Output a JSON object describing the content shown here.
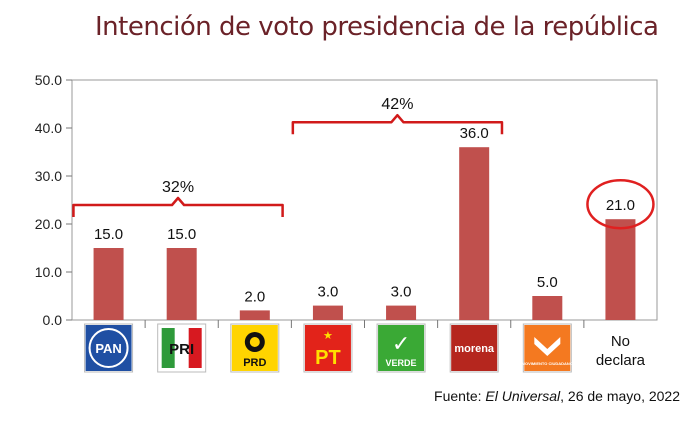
{
  "title": "Intención de voto presidencia de la república",
  "chart_data": {
    "type": "bar",
    "categories": [
      "PAN",
      "PRI",
      "PRD",
      "PT",
      "VERDE",
      "morena",
      "MOVIMIENTO CIUDADANO",
      "No declara"
    ],
    "values": [
      15.0,
      15.0,
      2.0,
      3.0,
      3.0,
      36.0,
      5.0,
      21.0
    ],
    "value_labels": [
      "15.0",
      "15.0",
      "2.0",
      "3.0",
      "3.0",
      "36.0",
      "5.0",
      "21.0"
    ],
    "yticks": [
      "0.0",
      "10.0",
      "20.0",
      "30.0",
      "40.0",
      "50.0"
    ],
    "ylim": [
      0,
      50
    ],
    "bar_color": "#c0504d",
    "groups": [
      {
        "label": "32%",
        "from": 0,
        "to": 2
      },
      {
        "label": "42%",
        "from": 3,
        "to": 5
      }
    ],
    "highlight": {
      "index": 7,
      "color": "#e02020"
    },
    "no_declara_label": [
      "No",
      "declara"
    ],
    "logos": [
      {
        "name": "PAN",
        "bg": "#1f4fa3",
        "fg": "#ffffff"
      },
      {
        "name": "PRI",
        "bg": "#ffffff",
        "fg": "#111111"
      },
      {
        "name": "PRD",
        "bg": "#ffd400",
        "fg": "#111111"
      },
      {
        "name": "PT",
        "bg": "#e2231a",
        "fg": "#ffe000"
      },
      {
        "name": "VERDE",
        "bg": "#3aa935",
        "fg": "#ffffff"
      },
      {
        "name": "morena",
        "bg": "#b5261e",
        "fg": "#ffffff"
      },
      {
        "name": "MOVIMIENTO CIUDADANO",
        "bg": "#f47920",
        "fg": "#ffffff"
      }
    ]
  },
  "source": {
    "prefix": "Fuente: ",
    "outlet": "El Universal",
    "suffix": ", 26 de mayo, 2022"
  }
}
